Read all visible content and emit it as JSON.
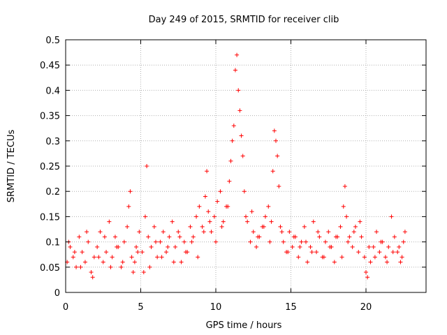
{
  "chart_data": {
    "type": "scatter",
    "title": "Day 249 of 2015, SRMTID for receiver clib",
    "xlabel": "GPS time / hours",
    "ylabel": "SRMTID / TECUs",
    "xlim": [
      0,
      24
    ],
    "ylim": [
      0,
      0.5
    ],
    "x_ticks": [
      0,
      5,
      10,
      15,
      20
    ],
    "x_tick_labels": [
      "0",
      "5",
      "10",
      "15",
      "20"
    ],
    "y_ticks": [
      0,
      0.05,
      0.1,
      0.15,
      0.2,
      0.25,
      0.3,
      0.35,
      0.4,
      0.45,
      0.5
    ],
    "y_tick_labels": [
      "0",
      "0.05",
      "0.1",
      "0.15",
      "0.2",
      "0.25",
      "0.3",
      "0.35",
      "0.4",
      "0.45",
      "0.5"
    ],
    "grid": true,
    "marker": "plus",
    "color": "#ff0000",
    "series": [
      {
        "name": "SRMTID",
        "x": [
          0.1,
          0.3,
          0.5,
          0.7,
          0.9,
          1.1,
          1.3,
          1.5,
          1.7,
          1.9,
          2.1,
          2.3,
          2.5,
          2.7,
          2.9,
          3.1,
          3.3,
          3.5,
          3.7,
          3.9,
          4.1,
          4.2,
          4.3,
          4.4,
          4.5,
          4.6,
          4.7,
          4.9,
          5.1,
          5.3,
          5.4,
          5.5,
          5.7,
          5.9,
          6.1,
          6.3,
          6.5,
          6.7,
          6.9,
          7.1,
          7.3,
          7.5,
          7.7,
          7.9,
          8.1,
          8.3,
          8.5,
          8.7,
          8.9,
          9.1,
          9.3,
          9.4,
          9.5,
          9.7,
          9.9,
          10.1,
          10.3,
          10.5,
          10.7,
          10.9,
          11.0,
          11.1,
          11.2,
          11.3,
          11.4,
          11.5,
          11.6,
          11.7,
          11.8,
          11.9,
          12.1,
          12.3,
          12.5,
          12.7,
          12.9,
          13.1,
          13.3,
          13.5,
          13.7,
          13.8,
          13.9,
          14.0,
          14.1,
          14.2,
          14.3,
          14.5,
          14.7,
          14.9,
          15.1,
          15.3,
          15.5,
          15.7,
          15.9,
          16.1,
          16.3,
          16.5,
          16.7,
          16.9,
          17.1,
          17.3,
          17.5,
          17.7,
          17.9,
          18.1,
          18.3,
          18.5,
          18.6,
          18.7,
          18.9,
          19.1,
          19.3,
          19.5,
          19.7,
          19.9,
          20.0,
          20.1,
          20.3,
          20.5,
          20.7,
          20.9,
          21.1,
          21.3,
          21.5,
          21.7,
          21.9,
          22.1,
          22.3,
          22.5,
          22.6,
          0.2,
          0.6,
          1.0,
          1.4,
          1.8,
          2.2,
          2.6,
          3.0,
          3.4,
          3.8,
          4.8,
          5.2,
          5.6,
          6.0,
          6.4,
          6.8,
          7.2,
          7.6,
          8.0,
          8.4,
          8.8,
          9.2,
          9.6,
          10.0,
          10.4,
          10.8,
          12.0,
          12.4,
          12.8,
          13.2,
          13.6,
          14.4,
          14.8,
          15.2,
          15.6,
          16.0,
          16.4,
          16.8,
          17.2,
          17.6,
          18.0,
          18.4,
          18.8,
          19.2,
          19.6,
          20.2,
          20.6,
          21.0,
          21.4,
          21.8,
          22.2,
          22.4
        ],
        "y": [
          0.06,
          0.09,
          0.07,
          0.05,
          0.11,
          0.08,
          0.06,
          0.1,
          0.04,
          0.07,
          0.09,
          0.12,
          0.06,
          0.08,
          0.14,
          0.07,
          0.11,
          0.09,
          0.05,
          0.1,
          0.13,
          0.17,
          0.2,
          0.07,
          0.04,
          0.06,
          0.09,
          0.12,
          0.08,
          0.15,
          0.25,
          0.11,
          0.09,
          0.13,
          0.07,
          0.1,
          0.12,
          0.08,
          0.11,
          0.14,
          0.09,
          0.12,
          0.06,
          0.1,
          0.08,
          0.13,
          0.11,
          0.15,
          0.17,
          0.13,
          0.19,
          0.24,
          0.16,
          0.12,
          0.15,
          0.18,
          0.2,
          0.14,
          0.17,
          0.22,
          0.26,
          0.3,
          0.33,
          0.44,
          0.47,
          0.4,
          0.36,
          0.31,
          0.27,
          0.2,
          0.14,
          0.1,
          0.12,
          0.09,
          0.11,
          0.13,
          0.15,
          0.17,
          0.14,
          0.24,
          0.32,
          0.3,
          0.27,
          0.21,
          0.13,
          0.1,
          0.08,
          0.12,
          0.09,
          0.11,
          0.07,
          0.1,
          0.13,
          0.06,
          0.09,
          0.14,
          0.08,
          0.11,
          0.07,
          0.1,
          0.12,
          0.09,
          0.06,
          0.11,
          0.13,
          0.17,
          0.21,
          0.15,
          0.11,
          0.09,
          0.13,
          0.08,
          0.11,
          0.07,
          0.04,
          0.03,
          0.06,
          0.09,
          0.12,
          0.08,
          0.1,
          0.07,
          0.09,
          0.15,
          0.11,
          0.08,
          0.06,
          0.1,
          0.12,
          0.1,
          0.08,
          0.05,
          0.12,
          0.03,
          0.07,
          0.11,
          0.05,
          0.09,
          0.06,
          0.08,
          0.04,
          0.05,
          0.1,
          0.07,
          0.09,
          0.06,
          0.11,
          0.08,
          0.1,
          0.07,
          0.12,
          0.14,
          0.1,
          0.13,
          0.17,
          0.15,
          0.16,
          0.11,
          0.13,
          0.1,
          0.12,
          0.08,
          0.11,
          0.09,
          0.1,
          0.08,
          0.12,
          0.07,
          0.09,
          0.11,
          0.07,
          0.1,
          0.12,
          0.14,
          0.09,
          0.07,
          0.1,
          0.06,
          0.08,
          0.09,
          0.07
        ]
      }
    ]
  }
}
